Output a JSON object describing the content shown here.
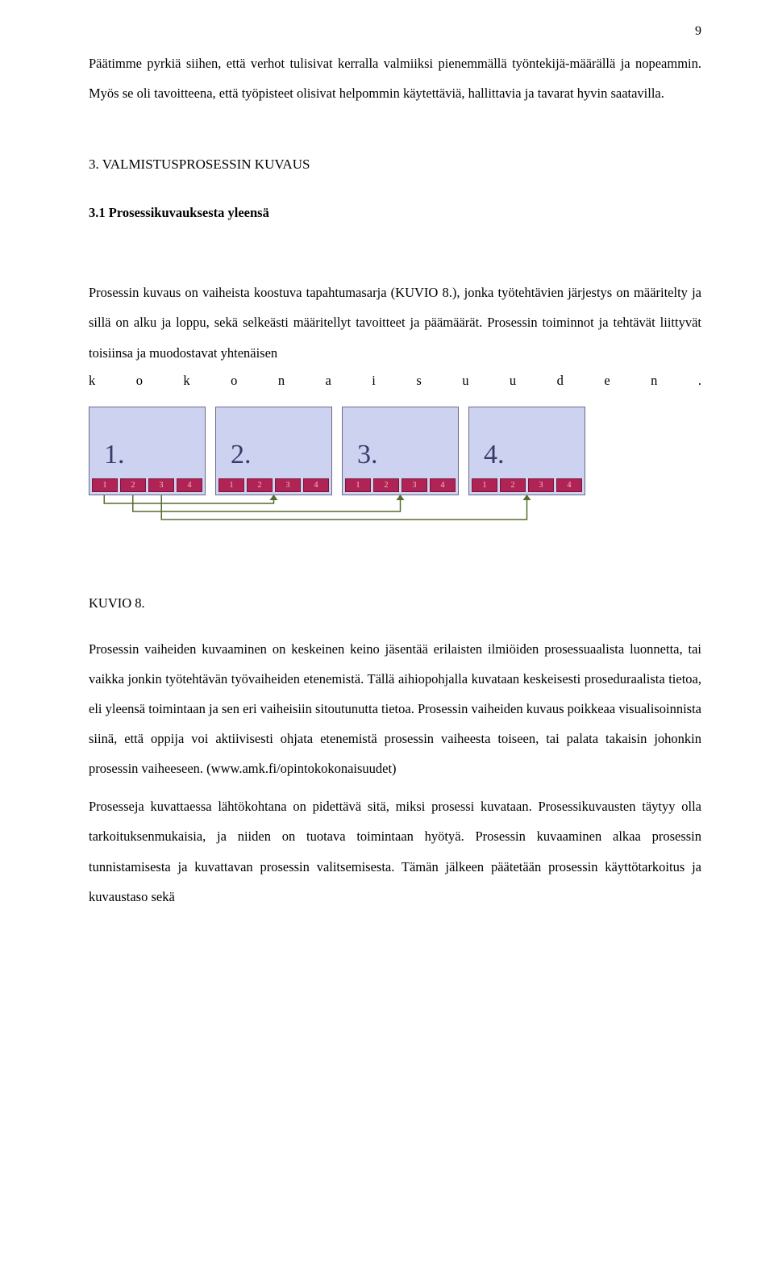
{
  "page_number": "9",
  "para1": "Päätimme pyrkiä siihen, että verhot tulisivat kerralla valmiiksi pienemmällä työntekijä-määrällä ja nopeammin. Myös se oli tavoitteena, että työpisteet olisivat helpommin käytettäviä, hallittavia ja tavarat hyvin saatavilla.",
  "h1": "3. VALMISTUSPROSESSIN KUVAUS",
  "h2": "3.1 Prosessikuvauksesta yleensä",
  "para2": "Prosessin kuvaus on vaiheista koostuva tapahtumasarja (KUVIO 8.), jonka työtehtävien järjestys on määritelty ja sillä on alku ja loppu, sekä selkeästi määritellyt tavoitteet ja päämäärät. Prosessin toiminnot ja tehtävät liittyvät toisiinsa ja muodostavat yhtenäisen",
  "spaced_word": "kokonaisuuden.",
  "diagram": {
    "type": "flowchart",
    "background_color": "#ffffff",
    "stages": [
      {
        "label": "1.",
        "minis": [
          "1",
          "2",
          "3",
          "4"
        ]
      },
      {
        "label": "2.",
        "minis": [
          "1",
          "2",
          "3",
          "4"
        ]
      },
      {
        "label": "3.",
        "minis": [
          "1",
          "2",
          "3",
          "4"
        ]
      },
      {
        "label": "4.",
        "minis": [
          "1",
          "2",
          "3",
          "4"
        ]
      }
    ],
    "box_fill": "#cdd2f0",
    "box_border": "#6a6a88",
    "mini_fill": "#b02455",
    "mini_border": "#7a163a",
    "mini_text_color": "#f0c0c0",
    "stage_num_color": "#3a3a6a",
    "connector_color": "#556b2f",
    "connectors": [
      {
        "from_stage": 0,
        "from_mini": 0,
        "to_stage": 1
      },
      {
        "from_stage": 0,
        "from_mini": 1,
        "to_stage": 2
      },
      {
        "from_stage": 0,
        "from_mini": 2,
        "to_stage": 3
      }
    ]
  },
  "kuvio_label": "KUVIO 8.",
  "para3": "Prosessin vaiheiden kuvaaminen on keskeinen keino jäsentää erilaisten ilmiöiden prosessuaalista luonnetta, tai vaikka jonkin työtehtävän työvaiheiden etenemistä. Tällä aihiopohjalla kuvataan keskeisesti proseduraalista tietoa, eli yleensä toimintaan ja sen eri vaiheisiin sitoutunutta tietoa. Prosessin vaiheiden kuvaus poikkeaa visualisoinnista siinä, että oppija voi aktiivisesti ohjata etenemistä prosessin vaiheesta toiseen, tai palata takaisin johonkin prosessin vaiheeseen. (www.amk.fi/opintokokonaisuudet)",
  "para4": "Prosesseja kuvattaessa lähtökohtana on pidettävä sitä, miksi prosessi kuvataan. Prosessikuvausten täytyy olla tarkoituksenmukaisia, ja niiden on tuotava toimintaan hyötyä. Prosessin kuvaaminen alkaa prosessin tunnistamisesta ja kuvattavan prosessin valitsemisesta. Tämän jälkeen päätetään prosessin käyttötarkoitus ja kuvaustaso sekä"
}
